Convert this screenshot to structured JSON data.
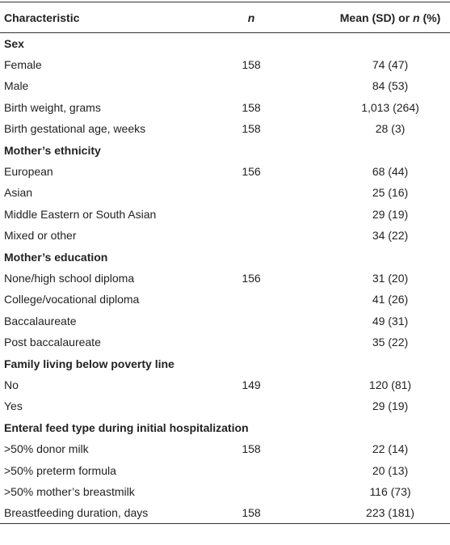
{
  "header": {
    "columns": [
      "Characteristic",
      "n",
      [
        "Mean (SD) or ",
        "n",
        " (%)"
      ]
    ]
  },
  "rows": [
    {
      "heading": "Sex"
    },
    {
      "cells": [
        "Female",
        "158",
        "74 (47)"
      ]
    },
    {
      "cells": [
        "Male",
        null,
        "84 (53)"
      ]
    },
    {
      "cells": [
        "Birth weight, grams",
        "158",
        "1,013 (264)"
      ]
    },
    {
      "cells": [
        "Birth gestational age, weeks",
        "158",
        "28 (3)"
      ]
    },
    {
      "heading": "Mother’s ethnicity"
    },
    {
      "cells": [
        "European",
        "156",
        "68 (44)"
      ]
    },
    {
      "cells": [
        "Asian",
        null,
        "25 (16)"
      ]
    },
    {
      "cells": [
        "Middle Eastern or South Asian",
        null,
        "29 (19)"
      ]
    },
    {
      "cells": [
        "Mixed or other",
        null,
        "34 (22)"
      ]
    },
    {
      "heading": "Mother’s education"
    },
    {
      "cells": [
        "None/high school diploma",
        "156",
        "31 (20)"
      ]
    },
    {
      "cells": [
        "College/vocational diploma",
        null,
        "41 (26)"
      ]
    },
    {
      "cells": [
        "Baccalaureate",
        null,
        "49 (31)"
      ]
    },
    {
      "cells": [
        "Post baccalaureate",
        null,
        "35 (22)"
      ]
    },
    {
      "heading": "Family living below poverty line"
    },
    {
      "cells": [
        "No",
        "149",
        "120 (81)"
      ]
    },
    {
      "cells": [
        "Yes",
        null,
        "29 (19)"
      ]
    },
    {
      "heading": "Enteral feed type during initial hospitalization"
    },
    {
      "cells": [
        ">50% donor milk",
        "158",
        "22 (14)"
      ]
    },
    {
      "cells": [
        ">50% preterm formula",
        null,
        "20 (13)"
      ]
    },
    {
      "cells": [
        ">50% mother’s breastmilk",
        null,
        "116 (73)"
      ]
    },
    {
      "cells": [
        "Breastfeeding duration, days",
        "158",
        "223 (181)"
      ]
    }
  ]
}
